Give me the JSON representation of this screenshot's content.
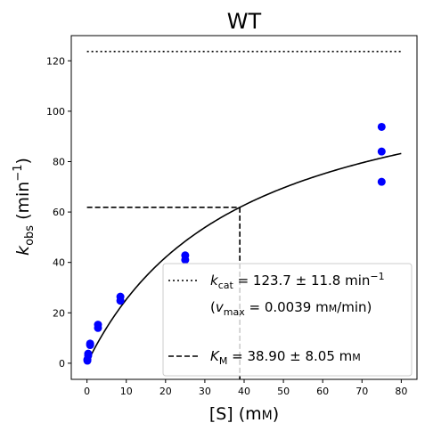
{
  "chart_data": {
    "type": "scatter",
    "title": "WT",
    "xlabel": {
      "base": "[S] (m",
      "small": "M",
      "tail": ")"
    },
    "ylabel": {
      "k": "k",
      "sub": "obs",
      "mid": " (min",
      "sup": "−1",
      "tail": ")"
    },
    "xlim": [
      -4,
      84
    ],
    "ylim": [
      -6.4,
      130
    ],
    "xticks": [
      0,
      10,
      20,
      30,
      40,
      50,
      60,
      70,
      80
    ],
    "yticks": [
      0,
      20,
      40,
      60,
      80,
      100,
      120
    ],
    "grid": false,
    "legend_position": "lower-right",
    "points": {
      "color": "#0000ff",
      "x": [
        0.1,
        0.1,
        0.3,
        0.3,
        0.8,
        0.8,
        2.8,
        2.8,
        8.5,
        8.5,
        25,
        25,
        75,
        75,
        75
      ],
      "y": [
        1.0,
        1.5,
        3.0,
        3.8,
        7.2,
        7.8,
        14.0,
        15.3,
        24.8,
        26.4,
        41.0,
        42.8,
        72.0,
        84.0,
        93.8
      ]
    },
    "fit": {
      "kcat": 123.7,
      "km": 38.9,
      "x_start": 0,
      "x_end": 80
    },
    "kcat_line": {
      "y": 123.7,
      "x_start": 0,
      "x_end": 80,
      "style": "dotted"
    },
    "km_guide": {
      "x": 38.9,
      "y": 61.85,
      "style": "dashed"
    },
    "legend": {
      "kcat": {
        "k": "k",
        "sub": "cat",
        "value": " = 123.7 ± 11.8 min",
        "sup": "−1"
      },
      "vmax": {
        "open": "(",
        "v": "v",
        "sub": "max",
        "value": " = 0.0039 m",
        "small": "M",
        "tail": "/min)"
      },
      "km": {
        "k": "K",
        "sub": "M",
        "value": " = 38.90 ± 8.05 m",
        "small": "M"
      }
    }
  }
}
